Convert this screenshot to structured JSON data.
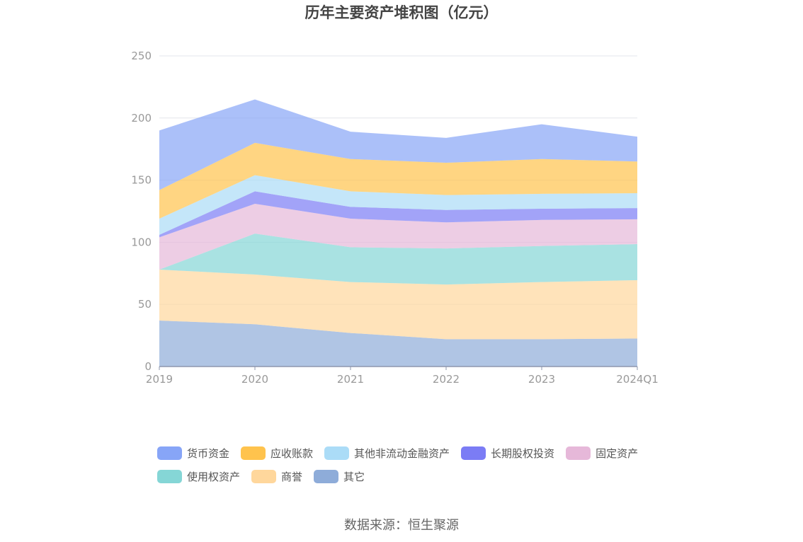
{
  "title": "历年主要资产堆积图（亿元）",
  "source": "数据来源：恒生聚源",
  "chart_data": {
    "type": "area",
    "stacked": true,
    "categories": [
      "2019",
      "2020",
      "2021",
      "2022",
      "2023",
      "2024Q1"
    ],
    "ylim": [
      0,
      250
    ],
    "yticks": [
      0,
      50,
      100,
      150,
      200,
      250
    ],
    "grid": true,
    "legend_position": "bottom",
    "series": [
      {
        "name": "其它",
        "color": "#8eacd9",
        "values": [
          37,
          34,
          27,
          22,
          22,
          22.5
        ]
      },
      {
        "name": "商誉",
        "color": "#ffd79c",
        "values": [
          41,
          40,
          41,
          44,
          46,
          47
        ]
      },
      {
        "name": "使用权资产",
        "color": "#85d6d6",
        "values": [
          0,
          33,
          28,
          29,
          29,
          29
        ]
      },
      {
        "name": "固定资产",
        "color": "#e6b8d9",
        "values": [
          26,
          24,
          23,
          21,
          21,
          20
        ]
      },
      {
        "name": "长期股权投资",
        "color": "#7b7cf5",
        "values": [
          2,
          10,
          9.5,
          10,
          9,
          9
        ]
      },
      {
        "name": "其他非流动金融资产",
        "color": "#abdcf7",
        "values": [
          13,
          13,
          12.5,
          12,
          12,
          12
        ]
      },
      {
        "name": "应收账款",
        "color": "#ffc34d",
        "values": [
          23,
          26,
          26,
          26,
          28,
          25.5
        ]
      },
      {
        "name": "货币资金",
        "color": "#87a5f7",
        "values": [
          48,
          35,
          22,
          20,
          28,
          20
        ]
      }
    ],
    "legend_order": [
      "货币资金",
      "应收账款",
      "其他非流动金融资产",
      "长期股权投资",
      "固定资产",
      "使用权资产",
      "商誉",
      "其它"
    ]
  }
}
